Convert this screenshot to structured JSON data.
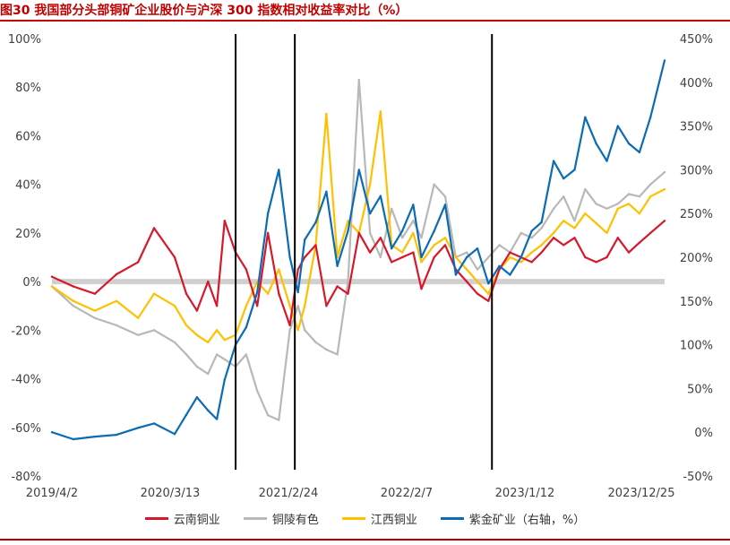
{
  "figure": {
    "title": "图30 我国部分头部铜矿企业股价与沪深 300 指数相对收益率对比（%）"
  },
  "colors": {
    "yunnan": "#d7182a",
    "tongling": "#b8b8b8",
    "jiangxi": "#ffc000",
    "zijin": "#0b6bb5",
    "zero_band": "#d0d0d0",
    "rule": "#c00000"
  },
  "chart_data": {
    "type": "line",
    "title": "我国部分头部铜矿企业股价与沪深 300 指数相对收益率对比（%）",
    "x_tick_labels": [
      "2019/4/2",
      "2020/3/13",
      "2021/2/24",
      "2022/2/7",
      "2023/1/12",
      "2023/12/25"
    ],
    "x_range": [
      "2019-04-02",
      "2023-12-25"
    ],
    "y_left": {
      "ticks": [
        "100%",
        "80%",
        "60%",
        "40%",
        "20%",
        "0%",
        "-20%",
        "-40%",
        "-60%",
        "-80%"
      ],
      "range": [
        -80,
        100
      ]
    },
    "y_right": {
      "ticks": [
        "450%",
        "400%",
        "350%",
        "300%",
        "250%",
        "200%",
        "150%",
        "100%",
        "50%",
        "0%",
        "-50%"
      ],
      "range": [
        -50,
        450
      ]
    },
    "vertical_markers": [
      "2020-09-01",
      "2021-02-15",
      "2022-08-25"
    ],
    "grid": false,
    "legend_position": "bottom",
    "series": [
      {
        "name": "云南铜业",
        "axis": "left",
        "x": [
          "2019-04-02",
          "2019-06-01",
          "2019-08-01",
          "2019-10-01",
          "2019-12-01",
          "2020-01-15",
          "2020-03-13",
          "2020-04-15",
          "2020-05-15",
          "2020-06-15",
          "2020-07-10",
          "2020-08-01",
          "2020-09-01",
          "2020-10-01",
          "2020-11-01",
          "2020-12-01",
          "2021-01-01",
          "2021-02-01",
          "2021-02-24",
          "2021-03-15",
          "2021-04-15",
          "2021-05-15",
          "2021-06-15",
          "2021-07-15",
          "2021-08-15",
          "2021-09-15",
          "2021-10-15",
          "2021-11-15",
          "2021-12-15",
          "2022-01-15",
          "2022-02-07",
          "2022-03-15",
          "2022-04-15",
          "2022-05-15",
          "2022-06-15",
          "2022-07-15",
          "2022-08-15",
          "2022-09-15",
          "2022-10-15",
          "2022-11-15",
          "2022-12-15",
          "2023-01-12",
          "2023-02-15",
          "2023-03-15",
          "2023-04-15",
          "2023-05-15",
          "2023-06-15",
          "2023-07-15",
          "2023-08-15",
          "2023-09-15",
          "2023-10-15",
          "2023-11-15",
          "2023-12-25"
        ],
        "values": [
          2,
          -2,
          -5,
          3,
          8,
          22,
          10,
          -5,
          -12,
          0,
          -10,
          25,
          12,
          5,
          -10,
          20,
          -5,
          -18,
          5,
          10,
          15,
          -10,
          -2,
          -5,
          20,
          12,
          18,
          8,
          10,
          12,
          -3,
          10,
          15,
          5,
          0,
          -5,
          -8,
          5,
          12,
          10,
          8,
          12,
          18,
          15,
          18,
          10,
          8,
          10,
          18,
          12,
          16,
          20,
          25
        ]
      },
      {
        "name": "铜陵有色",
        "axis": "left",
        "x": [
          "2019-04-02",
          "2019-06-01",
          "2019-08-01",
          "2019-10-01",
          "2019-12-01",
          "2020-01-15",
          "2020-03-13",
          "2020-04-15",
          "2020-05-15",
          "2020-06-15",
          "2020-07-10",
          "2020-08-01",
          "2020-09-01",
          "2020-10-01",
          "2020-11-01",
          "2020-12-01",
          "2021-01-01",
          "2021-02-01",
          "2021-02-24",
          "2021-03-15",
          "2021-04-15",
          "2021-05-15",
          "2021-06-15",
          "2021-07-15",
          "2021-08-15",
          "2021-09-15",
          "2021-10-15",
          "2021-11-15",
          "2021-12-15",
          "2022-01-15",
          "2022-02-07",
          "2022-03-15",
          "2022-04-15",
          "2022-05-15",
          "2022-06-15",
          "2022-07-15",
          "2022-08-15",
          "2022-09-15",
          "2022-10-15",
          "2022-11-15",
          "2022-12-15",
          "2023-01-12",
          "2023-02-15",
          "2023-03-15",
          "2023-04-15",
          "2023-05-15",
          "2023-06-15",
          "2023-07-15",
          "2023-08-15",
          "2023-09-15",
          "2023-10-15",
          "2023-11-15",
          "2023-12-25"
        ],
        "values": [
          -2,
          -10,
          -15,
          -18,
          -22,
          -20,
          -25,
          -30,
          -35,
          -38,
          -30,
          -32,
          -35,
          -30,
          -45,
          -55,
          -57,
          -20,
          -10,
          -20,
          -25,
          -28,
          -30,
          0,
          83,
          20,
          10,
          30,
          18,
          25,
          18,
          40,
          35,
          10,
          12,
          5,
          10,
          15,
          12,
          20,
          18,
          22,
          30,
          35,
          25,
          38,
          32,
          30,
          32,
          36,
          35,
          40,
          45
        ]
      },
      {
        "name": "江西铜业",
        "axis": "left",
        "x": [
          "2019-04-02",
          "2019-06-01",
          "2019-08-01",
          "2019-10-01",
          "2019-12-01",
          "2020-01-15",
          "2020-03-13",
          "2020-04-15",
          "2020-05-15",
          "2020-06-15",
          "2020-07-10",
          "2020-08-01",
          "2020-09-01",
          "2020-10-01",
          "2020-11-01",
          "2020-12-01",
          "2021-01-01",
          "2021-02-01",
          "2021-02-24",
          "2021-03-15",
          "2021-04-15",
          "2021-05-15",
          "2021-06-15",
          "2021-07-15",
          "2021-08-15",
          "2021-09-15",
          "2021-10-15",
          "2021-11-15",
          "2021-12-15",
          "2022-01-15",
          "2022-02-07",
          "2022-03-15",
          "2022-04-15",
          "2022-05-15",
          "2022-06-15",
          "2022-07-15",
          "2022-08-15",
          "2022-09-15",
          "2022-10-15",
          "2022-11-15",
          "2022-12-15",
          "2023-01-12",
          "2023-02-15",
          "2023-03-15",
          "2023-04-15",
          "2023-05-15",
          "2023-06-15",
          "2023-07-15",
          "2023-08-15",
          "2023-09-15",
          "2023-10-15",
          "2023-11-15",
          "2023-12-25"
        ],
        "values": [
          -2,
          -8,
          -12,
          -8,
          -15,
          -5,
          -10,
          -18,
          -22,
          -25,
          -20,
          -24,
          -22,
          -10,
          0,
          -5,
          5,
          -10,
          -20,
          -10,
          15,
          69,
          10,
          25,
          20,
          40,
          70,
          15,
          12,
          20,
          8,
          15,
          18,
          10,
          5,
          0,
          -5,
          5,
          10,
          8,
          12,
          15,
          20,
          25,
          22,
          28,
          24,
          20,
          30,
          32,
          28,
          35,
          38
        ]
      },
      {
        "name": "紫金矿业（右轴，%）",
        "axis": "right",
        "x": [
          "2019-04-02",
          "2019-06-01",
          "2019-08-01",
          "2019-10-01",
          "2019-12-01",
          "2020-01-15",
          "2020-03-13",
          "2020-04-15",
          "2020-05-15",
          "2020-06-15",
          "2020-07-10",
          "2020-08-01",
          "2020-09-01",
          "2020-10-01",
          "2020-11-01",
          "2020-12-01",
          "2021-01-01",
          "2021-02-01",
          "2021-02-24",
          "2021-03-15",
          "2021-04-15",
          "2021-05-15",
          "2021-06-15",
          "2021-07-15",
          "2021-08-15",
          "2021-09-15",
          "2021-10-15",
          "2021-11-15",
          "2021-12-15",
          "2022-01-15",
          "2022-02-07",
          "2022-03-15",
          "2022-04-15",
          "2022-05-15",
          "2022-06-15",
          "2022-07-15",
          "2022-08-15",
          "2022-09-15",
          "2022-10-15",
          "2022-11-15",
          "2022-12-15",
          "2023-01-12",
          "2023-02-15",
          "2023-03-15",
          "2023-04-15",
          "2023-05-15",
          "2023-06-15",
          "2023-07-15",
          "2023-08-15",
          "2023-09-15",
          "2023-10-15",
          "2023-11-15",
          "2023-12-25"
        ],
        "values": [
          0,
          -8,
          -5,
          -3,
          5,
          10,
          -2,
          20,
          40,
          25,
          15,
          60,
          100,
          120,
          160,
          250,
          300,
          200,
          160,
          220,
          240,
          275,
          190,
          230,
          300,
          250,
          270,
          210,
          230,
          260,
          200,
          230,
          260,
          180,
          200,
          210,
          170,
          190,
          180,
          200,
          230,
          240,
          310,
          290,
          300,
          360,
          330,
          310,
          350,
          330,
          320,
          360,
          425
        ]
      }
    ]
  },
  "legend": {
    "items": [
      {
        "label": "云南铜业"
      },
      {
        "label": "铜陵有色"
      },
      {
        "label": "江西铜业"
      },
      {
        "label": "紫金矿业（右轴，%）"
      }
    ]
  }
}
